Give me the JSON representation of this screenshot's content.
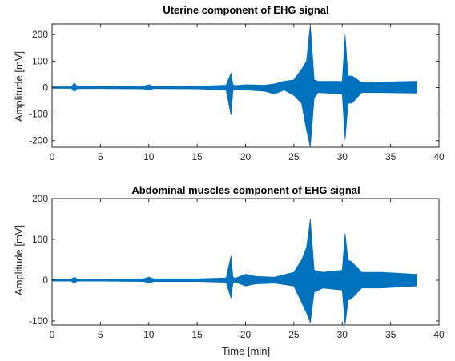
{
  "chart_data": [
    {
      "type": "line",
      "title": "Uterine component of EHG signal",
      "xlabel": "",
      "ylabel": "Amplitude [mV]",
      "xlim": [
        0,
        40
      ],
      "ylim": [
        -225,
        240
      ],
      "xticks": [
        0,
        5,
        10,
        15,
        20,
        25,
        30,
        35,
        40
      ],
      "yticks": [
        -200,
        -100,
        0,
        100,
        200
      ],
      "grid": false,
      "line_color": "#0072BD",
      "signal_end_min": 37.7,
      "envelope": {
        "x": [
          0,
          2.0,
          2.3,
          2.6,
          5,
          9.5,
          10.0,
          10.5,
          15,
          18.0,
          18.5,
          18.7,
          18.9,
          20.0,
          22.0,
          23.0,
          24.0,
          25.0,
          25.8,
          26.3,
          26.7,
          27.1,
          27.5,
          30.0,
          30.3,
          30.6,
          31.0,
          32.0,
          33.5,
          34.0,
          37.7
        ],
        "upper": [
          4,
          4,
          18,
          5,
          5,
          6,
          12,
          5,
          6,
          10,
          55,
          12,
          8,
          12,
          10,
          15,
          25,
          30,
          70,
          100,
          240,
          30,
          25,
          25,
          200,
          45,
          45,
          20,
          20,
          22,
          25
        ],
        "lower": [
          -4,
          -4,
          -15,
          -5,
          -5,
          -6,
          -10,
          -5,
          -6,
          -10,
          -105,
          -12,
          -8,
          -10,
          -15,
          -25,
          -10,
          -30,
          -60,
          -160,
          -225,
          -40,
          -20,
          -25,
          -200,
          -60,
          -60,
          -20,
          -20,
          -20,
          -22
        ]
      }
    },
    {
      "type": "line",
      "title": "Abdominal muscles component of EHG signal",
      "xlabel": "Time [min]",
      "ylabel": "Amplitude [mV]",
      "xlim": [
        0,
        40
      ],
      "ylim": [
        -110,
        200
      ],
      "xticks": [
        0,
        5,
        10,
        15,
        20,
        25,
        30,
        35,
        40
      ],
      "yticks": [
        -100,
        0,
        100,
        200
      ],
      "grid": false,
      "line_color": "#0072BD",
      "signal_end_min": 37.7,
      "envelope": {
        "x": [
          0,
          2.0,
          2.3,
          2.6,
          5,
          9.5,
          10.0,
          10.5,
          15,
          18.0,
          18.5,
          18.7,
          18.9,
          20.0,
          21.0,
          23.0,
          25.0,
          25.8,
          26.3,
          26.7,
          27.1,
          28.0,
          30.0,
          30.3,
          30.6,
          31.0,
          32.0,
          34.0,
          37.7
        ],
        "upper": [
          3,
          3,
          8,
          3,
          3,
          4,
          8,
          4,
          4,
          6,
          60,
          8,
          5,
          15,
          10,
          8,
          20,
          50,
          80,
          150,
          25,
          20,
          25,
          115,
          50,
          45,
          20,
          20,
          15
        ],
        "lower": [
          -3,
          -3,
          -8,
          -3,
          -3,
          -4,
          -8,
          -4,
          -4,
          -6,
          -45,
          -8,
          -5,
          -15,
          -10,
          -8,
          -15,
          -55,
          -80,
          -105,
          -30,
          -20,
          -25,
          -110,
          -50,
          -45,
          -20,
          -20,
          -15
        ]
      }
    }
  ]
}
